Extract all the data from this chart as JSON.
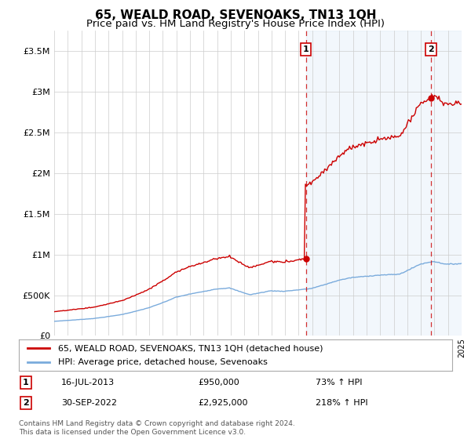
{
  "title": "65, WEALD ROAD, SEVENOAKS, TN13 1QH",
  "subtitle": "Price paid vs. HM Land Registry's House Price Index (HPI)",
  "ylim": [
    0,
    3750000
  ],
  "yticks": [
    0,
    500000,
    1000000,
    1500000,
    2000000,
    2500000,
    3000000,
    3500000
  ],
  "ytick_labels": [
    "£0",
    "£500K",
    "£1M",
    "£1.5M",
    "£2M",
    "£2.5M",
    "£3M",
    "£3.5M"
  ],
  "x_start_year": 1995,
  "x_end_year": 2025,
  "transaction1": {
    "date_year": 2013.54,
    "price": 950000,
    "label": "1",
    "date_str": "16-JUL-2013",
    "pct": "73%"
  },
  "transaction2": {
    "date_year": 2022.75,
    "price": 2925000,
    "label": "2",
    "date_str": "30-SEP-2022",
    "pct": "218%"
  },
  "legend_label_red": "65, WEALD ROAD, SEVENOAKS, TN13 1QH (detached house)",
  "legend_label_blue": "HPI: Average price, detached house, Sevenoaks",
  "footnote": "Contains HM Land Registry data © Crown copyright and database right 2024.\nThis data is licensed under the Open Government Licence v3.0.",
  "red_color": "#cc0000",
  "blue_color": "#7aabdc",
  "dashed_color": "#cc0000",
  "shade_color": "#ddeeff",
  "background_color": "#ffffff",
  "grid_color": "#cccccc",
  "title_fontsize": 11,
  "subtitle_fontsize": 9.5,
  "table_rows": [
    {
      "num": "1",
      "date": "16-JUL-2013",
      "price": "£950,000",
      "pct": "73% ↑ HPI"
    },
    {
      "num": "2",
      "date": "30-SEP-2022",
      "price": "£2,925,000",
      "pct": "218% ↑ HPI"
    }
  ]
}
